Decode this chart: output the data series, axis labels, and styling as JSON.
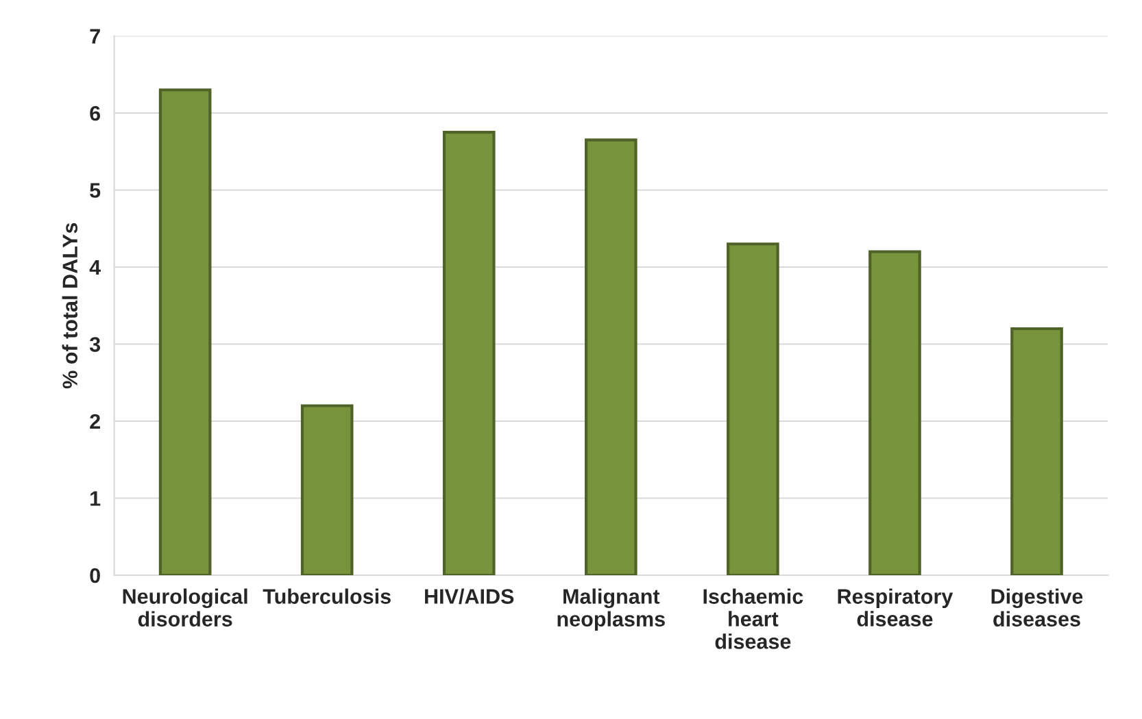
{
  "chart_data": {
    "type": "bar",
    "ylabel": "% of total DALYs",
    "categories": [
      "Neurological\ndisorders",
      "Tuberculosis",
      "HIV/AIDS",
      "Malignant\nneoplasms",
      "Ischaemic\nheart\ndisease",
      "Respiratory\ndisease",
      "Digestive\ndiseases"
    ],
    "values": [
      6.3,
      2.2,
      5.75,
      5.65,
      4.3,
      4.2,
      3.2
    ],
    "color": "#77933c",
    "ylim": [
      0,
      7
    ],
    "yticks": [
      0,
      1,
      2,
      3,
      4,
      5,
      6,
      7
    ],
    "grid": "y"
  }
}
